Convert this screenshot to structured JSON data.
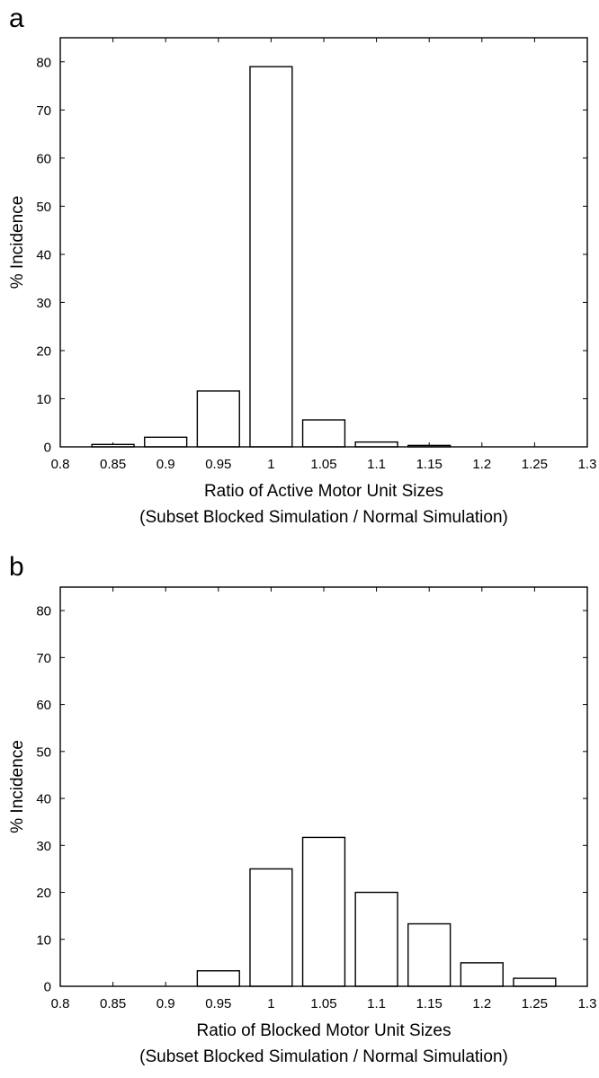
{
  "chart_data": [
    {
      "type": "bar",
      "panel_label": "a",
      "xlabel": "Ratio of Active Motor Unit Sizes",
      "xlabel_line2": "(Subset Blocked Simulation / Normal Simulation)",
      "ylabel": "% Incidence",
      "xlim": [
        0.8,
        1.3
      ],
      "ylim": [
        0,
        85
      ],
      "xticks": [
        "0.8",
        "0.85",
        "0.9",
        "0.95",
        "1",
        "1.05",
        "1.1",
        "1.15",
        "1.2",
        "1.25",
        "1.3"
      ],
      "yticks": [
        "0",
        "10",
        "20",
        "30",
        "40",
        "50",
        "60",
        "70",
        "80"
      ],
      "bar_width": 0.04,
      "x": [
        0.85,
        0.9,
        0.95,
        1.0,
        1.05,
        1.1,
        1.15
      ],
      "values": [
        0.5,
        2.0,
        11.6,
        79.0,
        5.6,
        1.0,
        0.3
      ],
      "grid": false,
      "bar_fill": "#ffffff",
      "bar_stroke": "#000000"
    },
    {
      "type": "bar",
      "panel_label": "b",
      "xlabel": "Ratio of Blocked Motor Unit Sizes",
      "xlabel_line2": "(Subset Blocked Simulation / Normal Simulation)",
      "ylabel": "% Incidence",
      "xlim": [
        0.8,
        1.3
      ],
      "ylim": [
        0,
        85
      ],
      "xticks": [
        "0.8",
        "0.85",
        "0.9",
        "0.95",
        "1",
        "1.05",
        "1.1",
        "1.15",
        "1.2",
        "1.25",
        "1.3"
      ],
      "yticks": [
        "0",
        "10",
        "20",
        "30",
        "40",
        "50",
        "60",
        "70",
        "80"
      ],
      "bar_width": 0.04,
      "x": [
        0.95,
        1.0,
        1.05,
        1.1,
        1.15,
        1.2,
        1.25
      ],
      "values": [
        3.3,
        25.0,
        31.7,
        20.0,
        13.3,
        5.0,
        1.7
      ],
      "grid": false,
      "bar_fill": "#ffffff",
      "bar_stroke": "#000000"
    }
  ]
}
